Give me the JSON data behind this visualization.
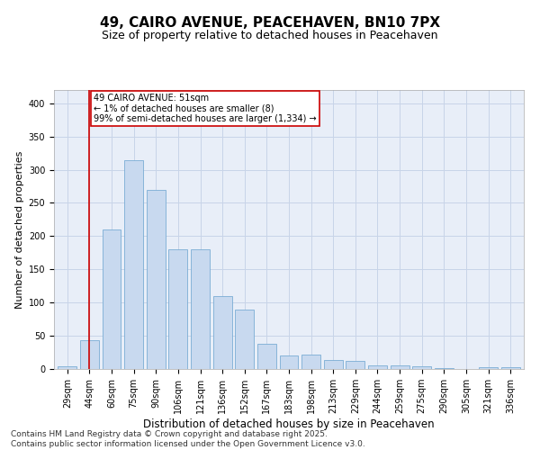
{
  "title1": "49, CAIRO AVENUE, PEACEHAVEN, BN10 7PX",
  "title2": "Size of property relative to detached houses in Peacehaven",
  "xlabel": "Distribution of detached houses by size in Peacehaven",
  "ylabel": "Number of detached properties",
  "categories": [
    "29sqm",
    "44sqm",
    "60sqm",
    "75sqm",
    "90sqm",
    "106sqm",
    "121sqm",
    "136sqm",
    "152sqm",
    "167sqm",
    "183sqm",
    "198sqm",
    "213sqm",
    "229sqm",
    "244sqm",
    "259sqm",
    "275sqm",
    "290sqm",
    "305sqm",
    "321sqm",
    "336sqm"
  ],
  "values": [
    4,
    43,
    210,
    315,
    270,
    180,
    180,
    110,
    90,
    38,
    20,
    22,
    14,
    12,
    5,
    5,
    4,
    2,
    0,
    3,
    3
  ],
  "bar_color": "#c8d9ef",
  "bar_edge_color": "#7aadd4",
  "grid_color": "#c8d4e8",
  "background_color": "#e8eef8",
  "vline_x": 1,
  "vline_color": "#cc0000",
  "annotation_text": "49 CAIRO AVENUE: 51sqm\n← 1% of detached houses are smaller (8)\n99% of semi-detached houses are larger (1,334) →",
  "annotation_box_color": "#cc0000",
  "footer_text": "Contains HM Land Registry data © Crown copyright and database right 2025.\nContains public sector information licensed under the Open Government Licence v3.0.",
  "ylim": [
    0,
    420
  ],
  "yticks": [
    0,
    50,
    100,
    150,
    200,
    250,
    300,
    350,
    400
  ],
  "title1_fontsize": 11,
  "title2_fontsize": 9,
  "xlabel_fontsize": 8.5,
  "ylabel_fontsize": 8,
  "tick_fontsize": 7,
  "ann_fontsize": 7,
  "footer_fontsize": 6.5
}
